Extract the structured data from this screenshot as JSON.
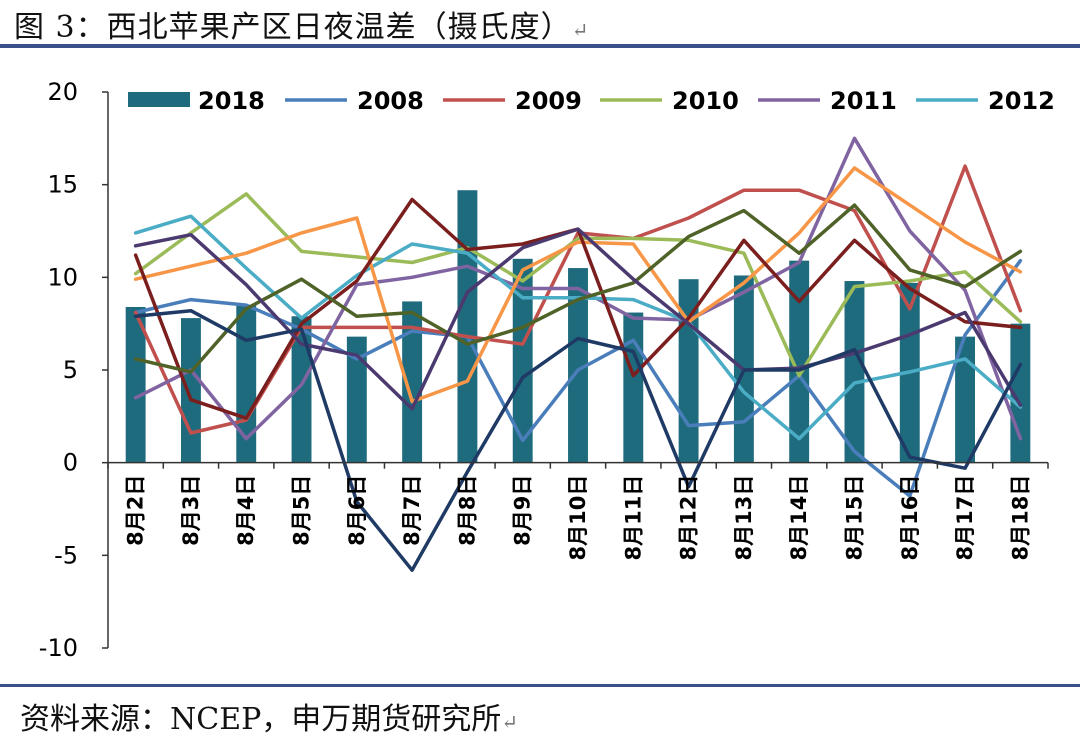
{
  "figure": {
    "title": "图 3：西北苹果产区日夜温差（摄氏度）",
    "return_mark": "↵",
    "source": "资料来源：NCEP，申万期货研究所",
    "source_return_mark": "↵"
  },
  "chart_data": {
    "type": "bar+line",
    "title": "西北苹果产区日夜温差（摄氏度）",
    "xlabel": "",
    "ylabel": "",
    "ylim": [
      -10,
      20
    ],
    "yticks": [
      -10,
      -5,
      0,
      5,
      10,
      15,
      20
    ],
    "categories": [
      "8月2日",
      "8月3日",
      "8月4日",
      "8月5日",
      "8月6日",
      "8月7日",
      "8月8日",
      "8月9日",
      "8月10日",
      "8月11日",
      "8月12日",
      "8月13日",
      "8月14日",
      "8月15日",
      "8月16日",
      "8月17日",
      "8月18日"
    ],
    "legend": [
      "2018",
      "2008",
      "2009",
      "2010",
      "2011",
      "2012"
    ],
    "legend_position": "top",
    "bar_series": {
      "name": "2018",
      "color": "#1f6b7e",
      "values": [
        8.4,
        7.8,
        8.5,
        7.9,
        6.8,
        8.7,
        14.7,
        11.0,
        10.5,
        8.1,
        9.9,
        10.1,
        10.9,
        9.8,
        9.7,
        6.8,
        7.5
      ]
    },
    "line_series": [
      {
        "name": "2008",
        "color": "#4a7ebb",
        "in_legend": true,
        "values": [
          8.1,
          8.8,
          8.5,
          7.2,
          5.6,
          7.1,
          6.8,
          1.2,
          5.0,
          6.6,
          2.0,
          2.2,
          4.7,
          0.6,
          -1.8,
          6.9,
          10.9
        ]
      },
      {
        "name": "2009",
        "color": "#c0504d",
        "in_legend": true,
        "values": [
          8.1,
          1.6,
          2.3,
          7.3,
          7.3,
          7.3,
          6.8,
          6.4,
          12.4,
          12.1,
          13.2,
          14.7,
          14.7,
          13.6,
          8.3,
          16.0,
          8.2
        ]
      },
      {
        "name": "2010",
        "color": "#9bbb59",
        "in_legend": true,
        "values": [
          10.2,
          12.4,
          14.5,
          11.4,
          11.1,
          10.8,
          11.6,
          9.8,
          12.1,
          12.1,
          12.0,
          11.3,
          4.7,
          9.5,
          9.8,
          10.3,
          7.6
        ]
      },
      {
        "name": "2011",
        "color": "#8064a2",
        "in_legend": true,
        "values": [
          3.5,
          5.0,
          1.3,
          4.2,
          9.6,
          10.0,
          10.6,
          9.4,
          9.4,
          7.8,
          7.7,
          9.2,
          10.8,
          17.5,
          12.5,
          9.3,
          1.3
        ]
      },
      {
        "name": "2012",
        "color": "#4bacc6",
        "in_legend": true,
        "values": [
          12.4,
          13.3,
          10.5,
          7.8,
          10.1,
          11.8,
          11.3,
          8.9,
          8.9,
          8.8,
          7.6,
          3.8,
          1.3,
          4.3,
          4.9,
          5.6,
          3.0
        ]
      },
      {
        "name": "",
        "color": "#f79646",
        "in_legend": false,
        "values": [
          9.9,
          10.6,
          11.3,
          12.4,
          13.2,
          3.3,
          4.4,
          10.4,
          11.9,
          11.8,
          7.6,
          9.7,
          12.4,
          15.9,
          13.9,
          11.9,
          10.3
        ]
      },
      {
        "name": "",
        "color": "#7a1e1e",
        "in_legend": false,
        "values": [
          11.2,
          3.4,
          2.4,
          7.5,
          9.8,
          14.2,
          11.5,
          11.8,
          12.6,
          4.7,
          7.8,
          12.0,
          8.7,
          12.0,
          9.4,
          7.6,
          7.3
        ]
      },
      {
        "name": "",
        "color": "#4f6228",
        "in_legend": false,
        "values": [
          5.6,
          4.9,
          8.3,
          9.9,
          7.9,
          8.1,
          6.4,
          7.3,
          8.8,
          9.7,
          12.2,
          13.6,
          11.3,
          13.9,
          10.4,
          9.5,
          11.4
        ]
      },
      {
        "name": "",
        "color": "#4b3a6f",
        "in_legend": false,
        "values": [
          11.7,
          12.3,
          9.6,
          6.4,
          5.8,
          2.9,
          9.2,
          11.6,
          12.6,
          9.9,
          7.5,
          5.0,
          5.1,
          5.9,
          6.9,
          8.1,
          3.1
        ]
      },
      {
        "name": "",
        "color": "#1f3a64",
        "in_legend": false,
        "values": [
          7.9,
          8.2,
          6.6,
          7.2,
          -2.1,
          -5.8,
          -0.5,
          4.6,
          6.7,
          6.0,
          -1.3,
          5.0,
          5.0,
          6.1,
          0.3,
          -0.3,
          5.3
        ]
      }
    ]
  }
}
